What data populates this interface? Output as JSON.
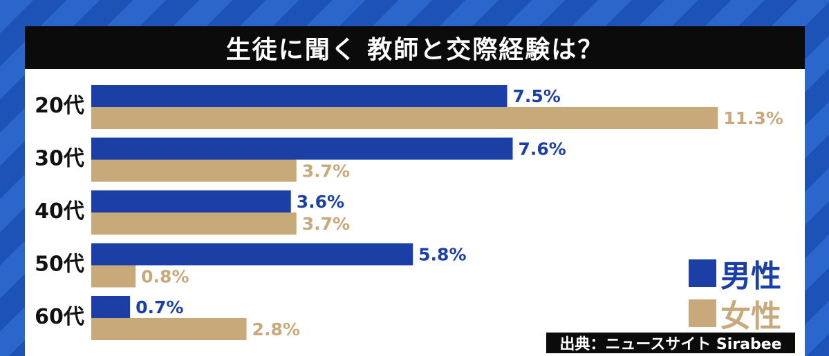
{
  "title": "生徒に聞く 教師と交際経験は？",
  "source": "出典：ニュースサイト Sirabee",
  "colors": {
    "male": "#1c3fa6",
    "female": "#c7a97a",
    "title_bg": "#0b0b0b"
  },
  "chart_data": {
    "type": "bar",
    "orientation": "horizontal",
    "title": "生徒に聞く 教師と交際経験は？",
    "categories": [
      "20代",
      "30代",
      "40代",
      "50代",
      "60代"
    ],
    "series": [
      {
        "name": "男性",
        "values": [
          7.5,
          7.6,
          3.6,
          5.8,
          0.7
        ],
        "labels": [
          "7.5%",
          "7.6%",
          "3.6%",
          "5.8%",
          "0.7%"
        ]
      },
      {
        "name": "女性",
        "values": [
          11.3,
          3.7,
          3.7,
          0.8,
          2.8
        ],
        "labels": [
          "11.3%",
          "3.7%",
          "3.7%",
          "0.8%",
          "2.8%"
        ]
      }
    ],
    "unit": "%",
    "xlim": [
      0,
      11.3
    ],
    "grid": false,
    "legend": "right"
  }
}
